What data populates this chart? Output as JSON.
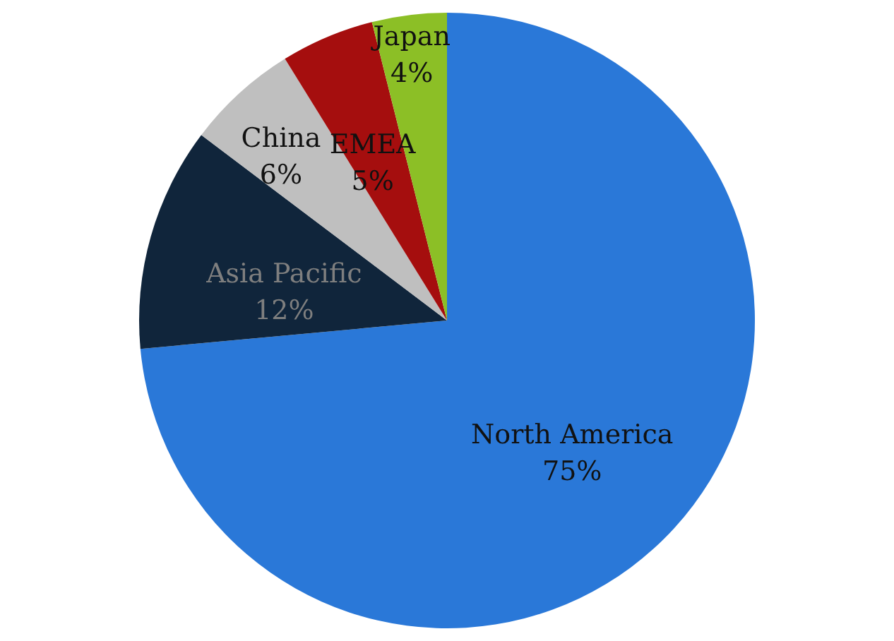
{
  "chart_data": {
    "type": "pie",
    "categories": [
      "North America",
      "Asia Pacific",
      "China",
      "EMEA",
      "Japan"
    ],
    "values": [
      75,
      12,
      6,
      5,
      4
    ],
    "value_labels": [
      "75%",
      "12%",
      "6%",
      "5%",
      "4%"
    ],
    "colors": [
      "#2a78d8",
      "#10253b",
      "#bfbfbf",
      "#a50e0e",
      "#8cbf26"
    ]
  }
}
